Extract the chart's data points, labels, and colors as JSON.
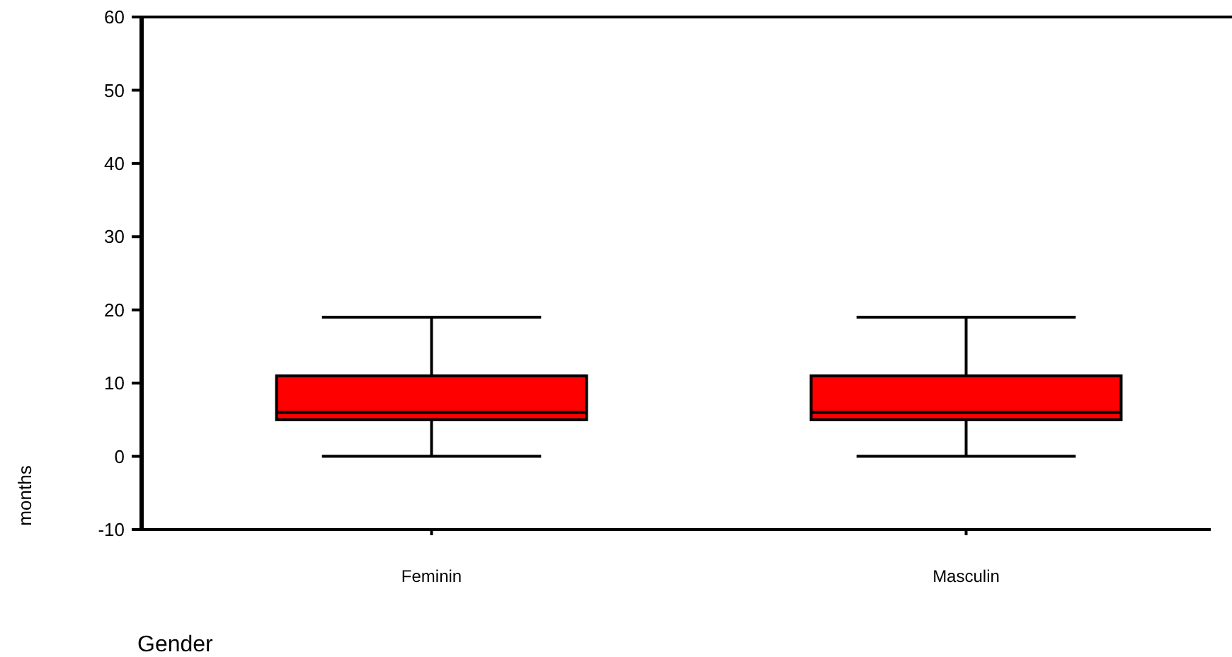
{
  "chart_data": {
    "type": "box",
    "xlabel": "Gender",
    "ylabel": "months",
    "categories": [
      "Feminin",
      "Masculin"
    ],
    "ylim": [
      -10,
      60
    ],
    "yticks": [
      -10,
      0,
      10,
      20,
      30,
      40,
      50,
      60
    ],
    "color": "#ff0000",
    "boxes": [
      {
        "low": 0,
        "q1": 5,
        "median": 6,
        "q3": 11,
        "high": 19
      },
      {
        "low": 0,
        "q1": 5,
        "median": 6,
        "q3": 11,
        "high": 19
      }
    ]
  }
}
